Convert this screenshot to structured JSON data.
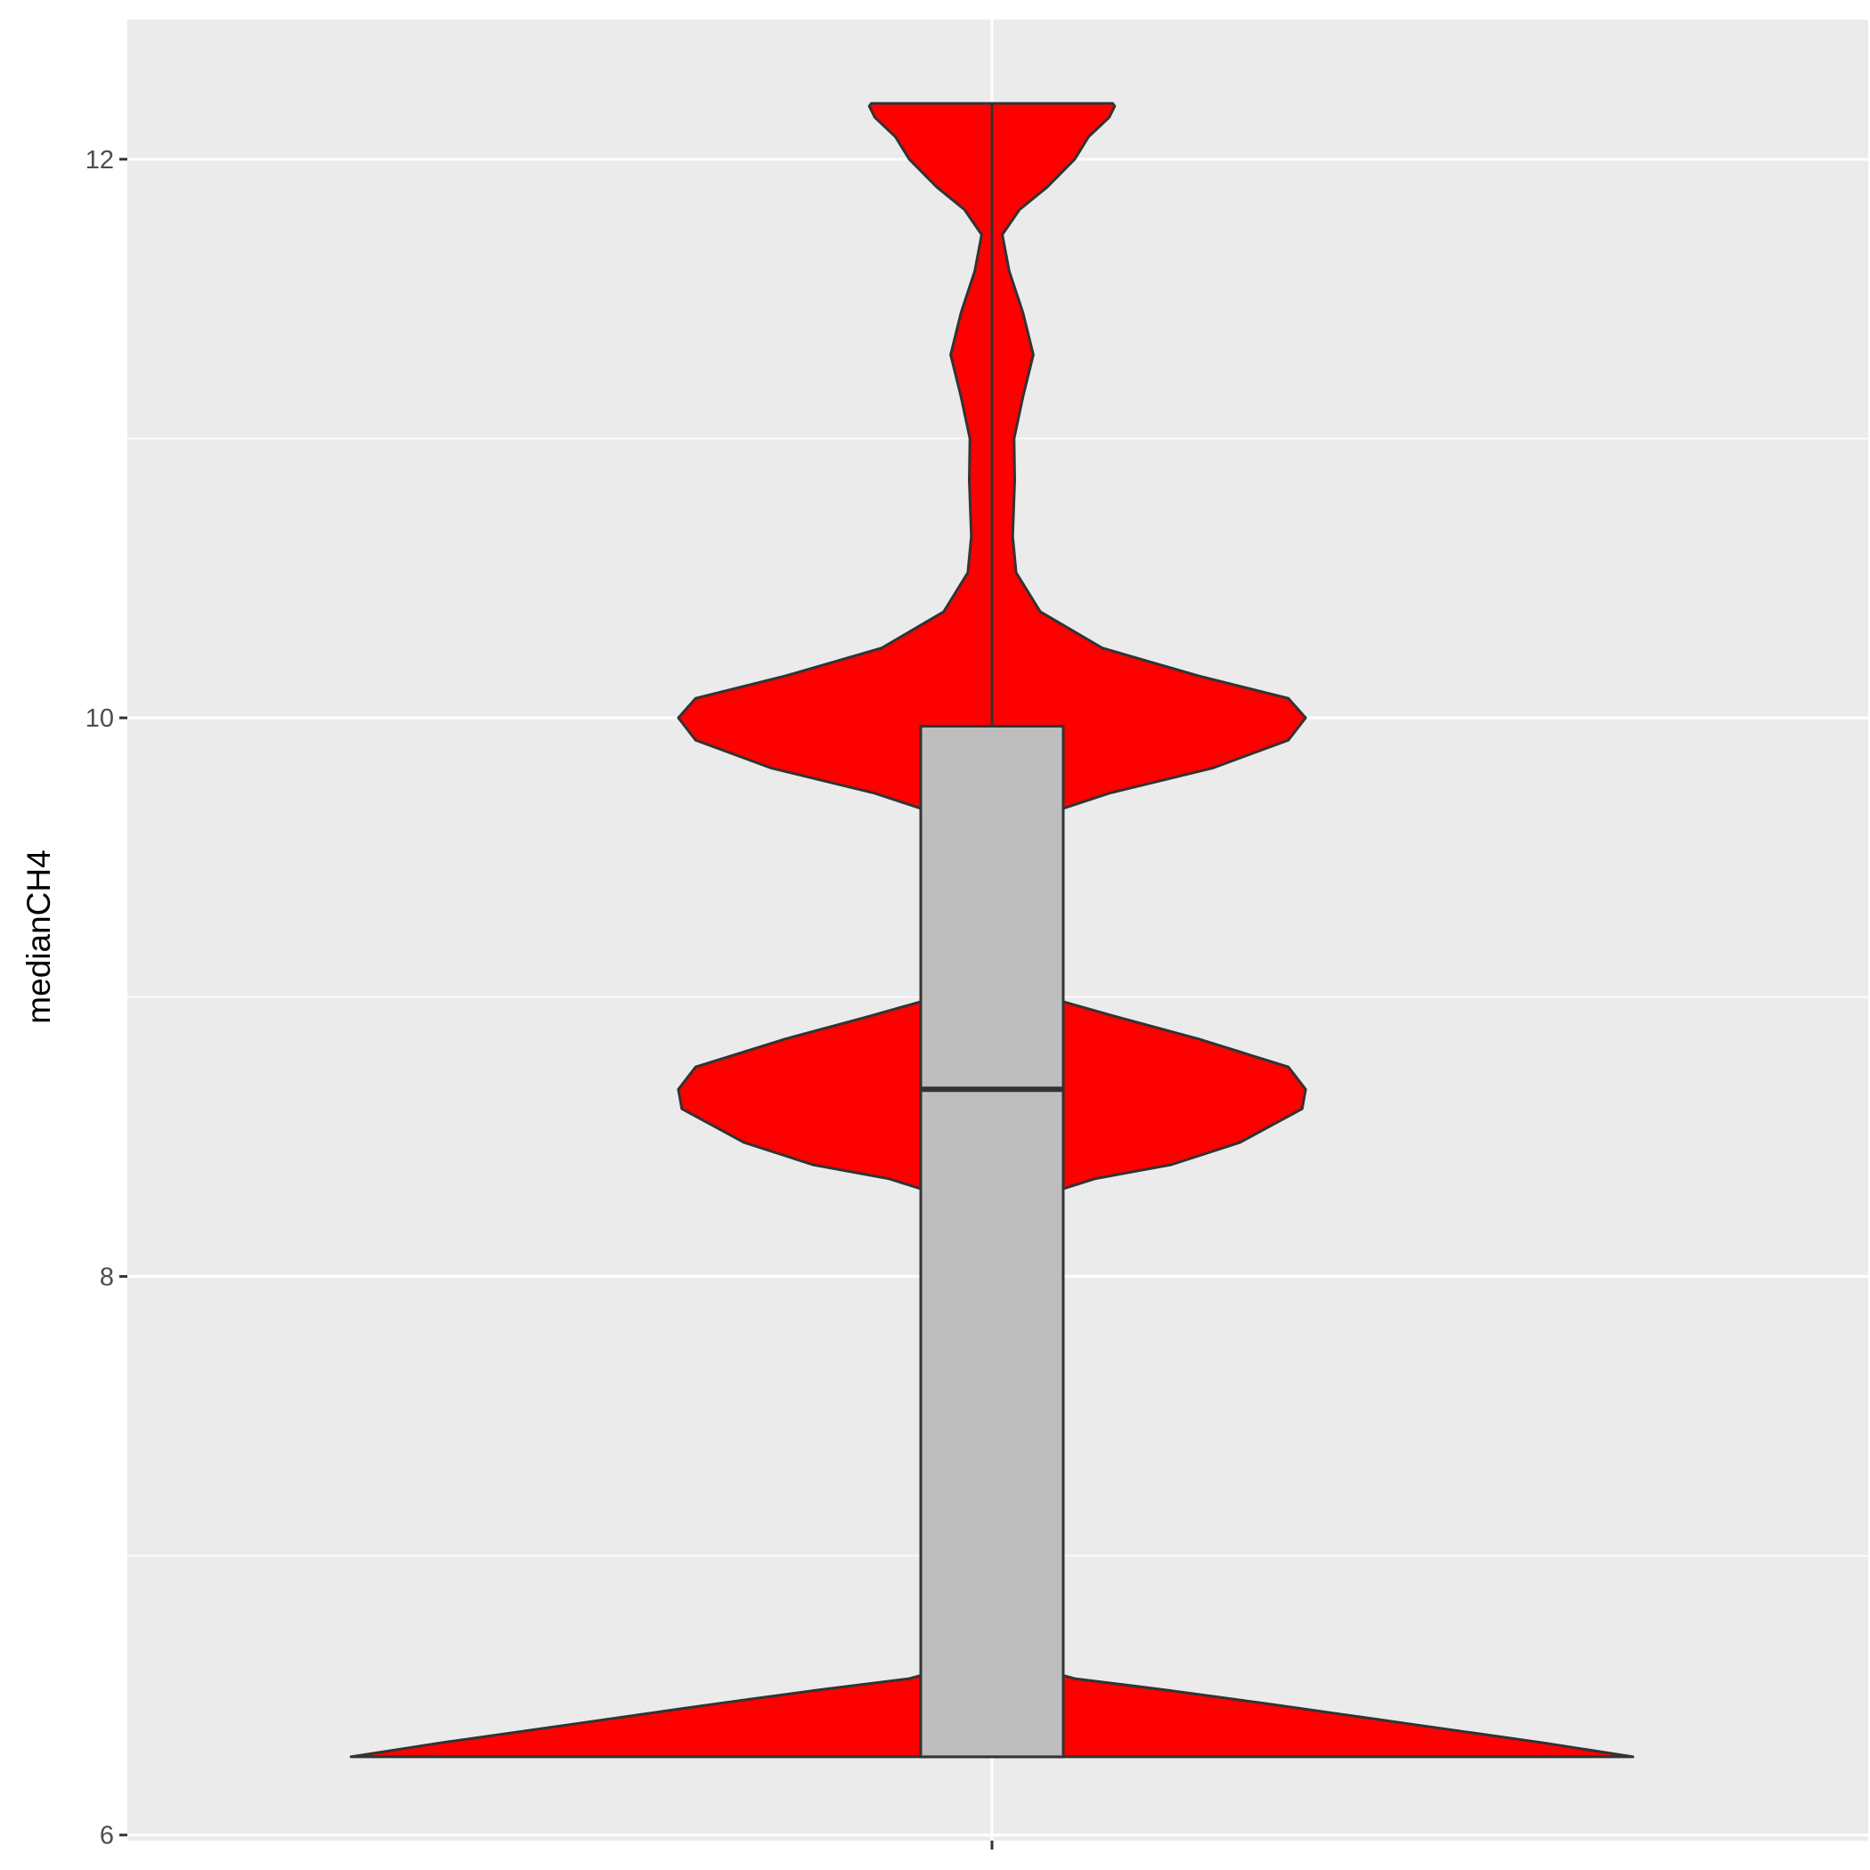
{
  "chart_data": {
    "type": "violin",
    "title": "",
    "xlabel": "",
    "ylabel": "medianCH4",
    "categories": [
      ""
    ],
    "ylim": [
      5.98,
      12.5
    ],
    "y_ticks": [
      6,
      8,
      10,
      12
    ],
    "y_minor_ticks": [
      7,
      9,
      11
    ],
    "grid": true,
    "legend": "none",
    "violin": {
      "fill": "#ff0000",
      "outline": "#333333",
      "y_range": [
        6.28,
        12.2
      ],
      "density": [
        [
          6.28,
          0.93
        ],
        [
          6.33,
          0.8
        ],
        [
          6.4,
          0.6
        ],
        [
          6.47,
          0.4
        ],
        [
          6.52,
          0.25
        ],
        [
          6.56,
          0.12
        ],
        [
          6.6,
          0.06
        ],
        [
          6.68,
          0.02
        ],
        [
          6.85,
          0.0
        ],
        [
          7.25,
          0.0
        ],
        [
          7.3,
          0.04
        ],
        [
          7.35,
          0.06
        ],
        [
          7.45,
          0.072
        ],
        [
          7.55,
          0.06
        ],
        [
          7.62,
          0.04
        ],
        [
          7.7,
          0.0
        ],
        [
          8.1,
          0.0
        ],
        [
          8.28,
          0.06
        ],
        [
          8.35,
          0.15
        ],
        [
          8.4,
          0.26
        ],
        [
          8.48,
          0.36
        ],
        [
          8.6,
          0.45
        ],
        [
          8.67,
          0.455
        ],
        [
          8.75,
          0.43
        ],
        [
          8.85,
          0.3
        ],
        [
          8.93,
          0.18
        ],
        [
          9.0,
          0.08
        ],
        [
          9.08,
          0.02
        ],
        [
          9.15,
          0.0
        ],
        [
          9.4,
          0.0
        ],
        [
          9.55,
          0.02
        ],
        [
          9.64,
          0.06
        ],
        [
          9.73,
          0.17
        ],
        [
          9.82,
          0.32
        ],
        [
          9.92,
          0.43
        ],
        [
          10.0,
          0.455
        ],
        [
          10.07,
          0.43
        ],
        [
          10.15,
          0.3
        ],
        [
          10.25,
          0.16
        ],
        [
          10.38,
          0.07
        ],
        [
          10.52,
          0.035
        ],
        [
          10.65,
          0.03
        ],
        [
          10.85,
          0.033
        ],
        [
          11.0,
          0.032
        ],
        [
          11.15,
          0.045
        ],
        [
          11.3,
          0.06
        ],
        [
          11.45,
          0.045
        ],
        [
          11.6,
          0.025
        ],
        [
          11.73,
          0.015
        ],
        [
          11.82,
          0.04
        ],
        [
          11.9,
          0.08
        ],
        [
          12.0,
          0.12
        ],
        [
          12.08,
          0.14
        ],
        [
          12.15,
          0.17
        ],
        [
          12.19,
          0.178
        ],
        [
          12.2,
          0.175
        ]
      ]
    },
    "boxplot": {
      "fill": "#bebebe",
      "outline": "#333333",
      "q1": 6.28,
      "median": 8.67,
      "q3": 9.97,
      "whisker_low": 6.28,
      "whisker_high": 12.2
    }
  }
}
